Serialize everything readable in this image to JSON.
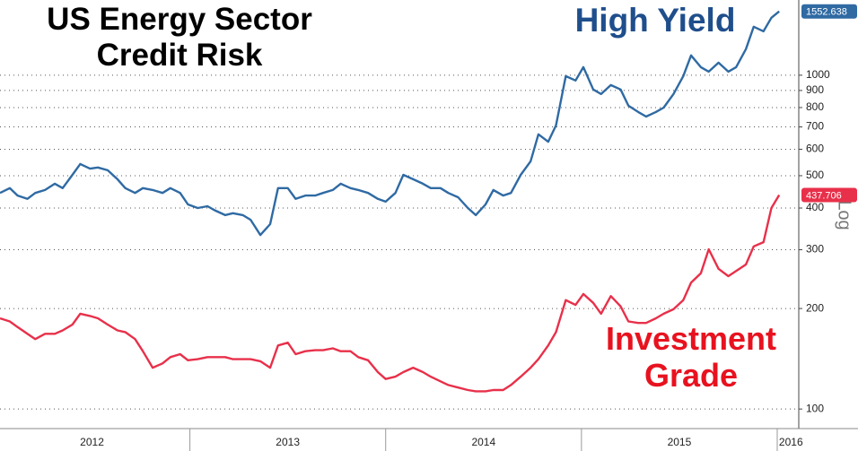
{
  "chart_data": {
    "type": "line",
    "title": "US Energy Sector Credit Risk",
    "log": true,
    "scale_label": "Log",
    "grid": true,
    "xlim": [
      2012.03,
      2016.11
    ],
    "xticks": [
      {
        "value": 2012.5,
        "label": "2012"
      },
      {
        "value": 2013.5,
        "label": "2013"
      },
      {
        "value": 2014.5,
        "label": "2014"
      },
      {
        "value": 2015.5,
        "label": "2015"
      },
      {
        "value": 2016.07,
        "label": "2016"
      }
    ],
    "xdividers": [
      2013,
      2014,
      2015,
      2016
    ],
    "ylim": [
      89,
      1680
    ],
    "yticks": [
      100,
      200,
      300,
      400,
      500,
      600,
      700,
      800,
      900,
      1000
    ],
    "x": [
      2012.03,
      2012.08,
      2012.12,
      2012.17,
      2012.21,
      2012.26,
      2012.31,
      2012.35,
      2012.4,
      2012.44,
      2012.49,
      2012.53,
      2012.58,
      2012.63,
      2012.67,
      2012.72,
      2012.76,
      2012.81,
      2012.86,
      2012.9,
      2012.95,
      2012.99,
      2013.04,
      2013.09,
      2013.13,
      2013.18,
      2013.22,
      2013.27,
      2013.31,
      2013.36,
      2013.41,
      2013.45,
      2013.5,
      2013.54,
      2013.59,
      2013.64,
      2013.68,
      2013.73,
      2013.77,
      2013.82,
      2013.86,
      2013.91,
      2013.96,
      2014.0,
      2014.05,
      2014.09,
      2014.14,
      2014.19,
      2014.23,
      2014.28,
      2014.32,
      2014.37,
      2014.42,
      2014.46,
      2014.51,
      2014.55,
      2014.6,
      2014.64,
      2014.69,
      2014.74,
      2014.78,
      2014.83,
      2014.87,
      2014.92,
      2014.97,
      2015.01,
      2015.06,
      2015.1,
      2015.15,
      2015.2,
      2015.24,
      2015.29,
      2015.33,
      2015.38,
      2015.42,
      2015.47,
      2015.52,
      2015.56,
      2015.61,
      2015.65,
      2015.7,
      2015.75,
      2015.79,
      2015.84,
      2015.88,
      2015.93,
      2015.97,
      2016.01
    ],
    "series": [
      {
        "name": "High Yield",
        "color": "#2f6aa3",
        "label_color": "#1f4e8c",
        "values": [
          444,
          459,
          436,
          426,
          444,
          453,
          473,
          459,
          503,
          542,
          525,
          529,
          519,
          488,
          459,
          444,
          459,
          453,
          444,
          459,
          444,
          410,
          400,
          405,
          393,
          381,
          386,
          381,
          369,
          332,
          358,
          459,
          459,
          426,
          436,
          436,
          444,
          453,
          473,
          459,
          453,
          444,
          426,
          418,
          444,
          503,
          488,
          473,
          459,
          459,
          444,
          431,
          400,
          381,
          410,
          453,
          436,
          444,
          503,
          552,
          665,
          632,
          707,
          994,
          964,
          1057,
          906,
          878,
          934,
          906,
          810,
          776,
          752,
          776,
          800,
          878,
          994,
          1146,
          1057,
          1025,
          1090,
          1025,
          1057,
          1197,
          1397,
          1354,
          1486,
          1552.638
        ]
      },
      {
        "name": "Investment Grade",
        "color": "#e8304a",
        "label_color": "#e8121f",
        "values": [
          187,
          183,
          176,
          168,
          162,
          168,
          168,
          172,
          179,
          193,
          190,
          187,
          179,
          172,
          170,
          162,
          149,
          133,
          137,
          143,
          146,
          140,
          141,
          143,
          143,
          143,
          141,
          141,
          141,
          139,
          133,
          155,
          158,
          146,
          149,
          150,
          150,
          152,
          149,
          149,
          143,
          140,
          129,
          123,
          125,
          129,
          133,
          129,
          125,
          121,
          118,
          116,
          114,
          113,
          113,
          114,
          114,
          118,
          125,
          133,
          141,
          155,
          170,
          212,
          205,
          221,
          208,
          193,
          218,
          203,
          183,
          181,
          181,
          187,
          193,
          199,
          212,
          239,
          255,
          301,
          263,
          250,
          259,
          271,
          307,
          316,
          400,
          437.706
        ]
      }
    ]
  }
}
